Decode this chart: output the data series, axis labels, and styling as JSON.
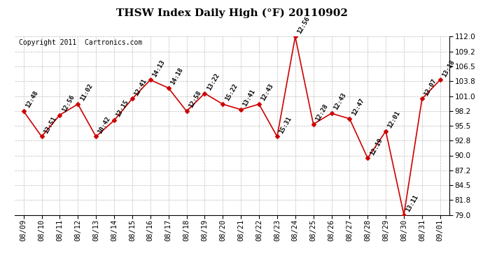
{
  "title": "THSW Index Daily High (°F) 20110902",
  "copyright": "Copyright 2011  Cartronics.com",
  "dates": [
    "08/09",
    "08/10",
    "08/11",
    "08/12",
    "08/13",
    "08/14",
    "08/15",
    "08/16",
    "08/17",
    "08/18",
    "08/19",
    "08/20",
    "08/21",
    "08/22",
    "08/23",
    "08/24",
    "08/25",
    "08/26",
    "08/27",
    "08/28",
    "08/29",
    "08/30",
    "08/31",
    "09/01"
  ],
  "values": [
    98.2,
    93.5,
    97.5,
    99.5,
    93.5,
    96.5,
    100.5,
    104.0,
    102.5,
    98.2,
    101.5,
    99.5,
    98.5,
    99.5,
    93.5,
    112.0,
    95.8,
    97.8,
    96.8,
    89.5,
    94.5,
    79.0,
    100.5,
    104.0
  ],
  "times": [
    "12:48",
    "13:51",
    "12:56",
    "11:02",
    "10:42",
    "13:15",
    "12:41",
    "14:13",
    "14:18",
    "12:58",
    "13:22",
    "15:22",
    "13:41",
    "12:43",
    "15:31",
    "12:56",
    "12:28",
    "12:43",
    "12:47",
    "12:19",
    "12:01",
    "13:11",
    "13:07",
    "13:18"
  ],
  "ylim": [
    79.0,
    112.0
  ],
  "yticks": [
    79.0,
    81.8,
    84.5,
    87.2,
    90.0,
    92.8,
    95.5,
    98.2,
    101.0,
    103.8,
    106.5,
    109.2,
    112.0
  ],
  "line_color": "#cc0000",
  "marker_color": "#cc0000",
  "grid_color": "#bbbbbb",
  "bg_color": "#ffffff",
  "plot_bg_color": "#ffffff",
  "title_fontsize": 11,
  "copyright_fontsize": 7,
  "label_fontsize": 6.5,
  "tick_fontsize": 7.5
}
